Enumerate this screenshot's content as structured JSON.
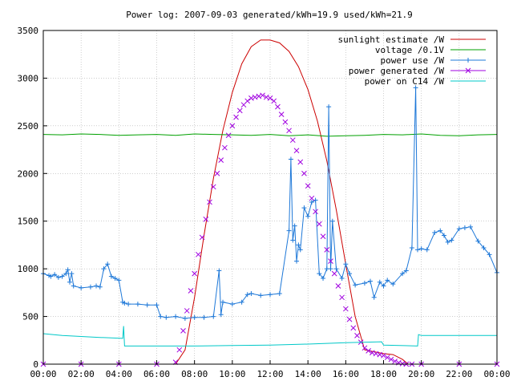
{
  "chart_data": {
    "type": "line",
    "title": "Power log: 2007-09-03 generated/kWh=19.9 used/kWh=21.9",
    "xlabel": "",
    "ylabel": "",
    "x_tick_labels": [
      "00:00",
      "02:00",
      "04:00",
      "06:00",
      "08:00",
      "10:00",
      "12:00",
      "14:00",
      "16:00",
      "18:00",
      "20:00",
      "22:00",
      "00:00"
    ],
    "y_tick_labels": [
      "0",
      "500",
      "1000",
      "1500",
      "2000",
      "2500",
      "3000",
      "3500"
    ],
    "xlim_hours": [
      0,
      24
    ],
    "ylim": [
      0,
      3500
    ],
    "grid": true,
    "legend_position": "top-right",
    "colors": {
      "sunlight": "#cc0000",
      "voltage": "#00a000",
      "use": "#1e78d8",
      "generated": "#a000e0",
      "c14": "#00c8c8"
    },
    "series": [
      {
        "name": "sunlight estimate /W",
        "style": "line",
        "x": [
          7.0,
          7.5,
          8.0,
          8.5,
          9.0,
          9.5,
          10.0,
          10.5,
          11.0,
          11.5,
          12.0,
          12.5,
          13.0,
          13.5,
          14.0,
          14.5,
          15.0,
          15.5,
          16.0,
          16.5,
          17.0,
          17.5,
          18.0,
          18.5,
          19.0,
          19.3
        ],
        "y": [
          0,
          150,
          700,
          1350,
          1950,
          2450,
          2850,
          3150,
          3330,
          3400,
          3400,
          3370,
          3280,
          3120,
          2880,
          2550,
          2130,
          1620,
          1050,
          500,
          150,
          130,
          110,
          100,
          50,
          0
        ]
      },
      {
        "name": "voltage /0.1V",
        "style": "line",
        "x": [
          0,
          1,
          2,
          3,
          4,
          5,
          6,
          7,
          8,
          9,
          10,
          11,
          12,
          13,
          14,
          15,
          16,
          17,
          18,
          19,
          20,
          21,
          22,
          23,
          24
        ],
        "y": [
          2410,
          2405,
          2415,
          2410,
          2400,
          2405,
          2410,
          2400,
          2415,
          2410,
          2405,
          2400,
          2410,
          2395,
          2405,
          2390,
          2395,
          2400,
          2410,
          2405,
          2415,
          2400,
          2395,
          2405,
          2410
        ]
      },
      {
        "name": "power use /W",
        "style": "linespoints",
        "x": [
          0,
          0.3,
          0.4,
          0.6,
          0.8,
          1.0,
          1.2,
          1.3,
          1.4,
          1.5,
          1.6,
          2.0,
          2.5,
          2.8,
          3.0,
          3.2,
          3.4,
          3.6,
          3.8,
          4.0,
          4.2,
          4.3,
          4.5,
          5.0,
          5.5,
          6.0,
          6.2,
          6.5,
          7.0,
          7.5,
          8.0,
          8.5,
          9.0,
          9.3,
          9.4,
          9.5,
          10.0,
          10.5,
          10.8,
          11.0,
          11.5,
          12.0,
          12.5,
          13.0,
          13.1,
          13.2,
          13.3,
          13.4,
          13.5,
          13.6,
          13.8,
          14.0,
          14.2,
          14.4,
          14.6,
          14.8,
          15.0,
          15.1,
          15.2,
          15.3,
          15.5,
          15.8,
          16.0,
          16.2,
          16.5,
          17.0,
          17.3,
          17.5,
          17.8,
          18.0,
          18.2,
          18.5,
          19.0,
          19.2,
          19.5,
          19.7,
          19.8,
          20.0,
          20.3,
          20.7,
          21.0,
          21.2,
          21.4,
          21.6,
          22.0,
          22.3,
          22.6,
          23.0,
          23.3,
          23.6,
          24.0
        ],
        "y": [
          950,
          930,
          920,
          940,
          910,
          920,
          950,
          990,
          860,
          950,
          820,
          800,
          810,
          820,
          810,
          1000,
          1050,
          920,
          900,
          880,
          650,
          640,
          630,
          630,
          620,
          620,
          500,
          490,
          500,
          480,
          490,
          490,
          500,
          980,
          520,
          650,
          630,
          650,
          730,
          740,
          720,
          730,
          740,
          1400,
          2150,
          1300,
          1450,
          1080,
          1250,
          1200,
          1640,
          1550,
          1700,
          1720,
          950,
          900,
          1000,
          2700,
          1000,
          1500,
          1000,
          900,
          1050,
          950,
          830,
          850,
          870,
          700,
          860,
          820,
          880,
          840,
          950,
          980,
          1220,
          2900,
          1200,
          1210,
          1200,
          1380,
          1400,
          1350,
          1280,
          1300,
          1420,
          1430,
          1440,
          1290,
          1220,
          1150,
          960
        ]
      },
      {
        "name": "power generated /W",
        "style": "points",
        "x": [
          0,
          2,
          4,
          6,
          7.0,
          7.2,
          7.4,
          7.6,
          7.8,
          8.0,
          8.2,
          8.4,
          8.6,
          8.8,
          9.0,
          9.2,
          9.4,
          9.6,
          9.8,
          10.0,
          10.2,
          10.4,
          10.6,
          10.8,
          11.0,
          11.2,
          11.4,
          11.6,
          11.8,
          12.0,
          12.2,
          12.4,
          12.6,
          12.8,
          13.0,
          13.2,
          13.4,
          13.6,
          13.8,
          14.0,
          14.2,
          14.4,
          14.6,
          14.8,
          15.0,
          15.2,
          15.4,
          15.6,
          15.8,
          16.0,
          16.2,
          16.4,
          16.6,
          16.8,
          17.0,
          17.2,
          17.4,
          17.6,
          17.8,
          18.0,
          18.2,
          18.4,
          18.6,
          18.8,
          19.0,
          19.2,
          19.5,
          20,
          22,
          24
        ],
        "y": [
          0,
          0,
          0,
          0,
          20,
          150,
          350,
          560,
          770,
          950,
          1150,
          1330,
          1520,
          1700,
          1860,
          2000,
          2140,
          2270,
          2400,
          2500,
          2590,
          2660,
          2720,
          2760,
          2790,
          2800,
          2810,
          2820,
          2800,
          2790,
          2760,
          2700,
          2620,
          2540,
          2450,
          2350,
          2240,
          2120,
          2000,
          1870,
          1740,
          1600,
          1470,
          1340,
          1200,
          1080,
          950,
          820,
          700,
          580,
          470,
          380,
          300,
          230,
          170,
          140,
          120,
          110,
          100,
          90,
          70,
          50,
          30,
          15,
          5,
          0,
          0,
          0,
          0,
          0
        ]
      },
      {
        "name": "power on C14 /W",
        "style": "line",
        "x": [
          0,
          1,
          2,
          3,
          4.2,
          4.25,
          4.3,
          6,
          8,
          10,
          12,
          14,
          16,
          17.9,
          18,
          19.8,
          19.85,
          20,
          22,
          24
        ],
        "y": [
          320,
          300,
          290,
          280,
          270,
          400,
          190,
          190,
          190,
          195,
          200,
          210,
          225,
          235,
          200,
          190,
          310,
          300,
          300,
          300
        ]
      }
    ]
  }
}
